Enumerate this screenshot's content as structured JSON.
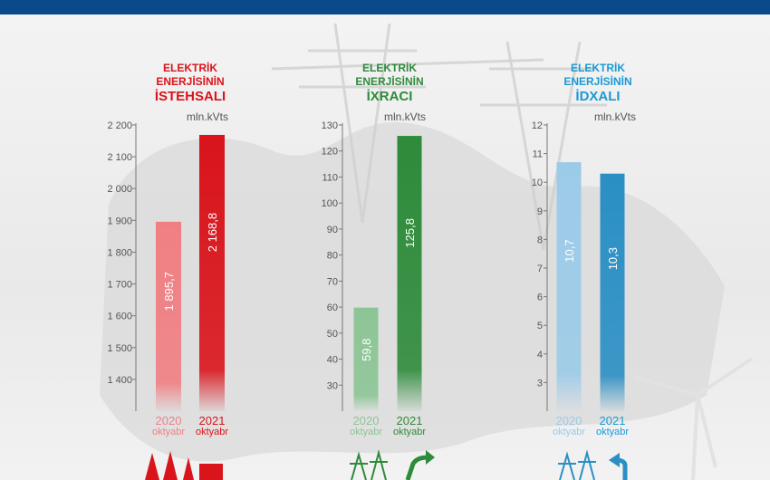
{
  "header": {
    "color": "#0a4a8a"
  },
  "panels": [
    {
      "title_line1": "ELEKTRİK",
      "title_line2": "ENERJİSİNİN",
      "title_line3": "İSTEHSALI",
      "unit": "mln.kVts",
      "accent": "#d9141b",
      "icon": "power-plant-icon",
      "bars": [
        {
          "year": "2020",
          "period": "oktyabr",
          "label": "1 895,7",
          "color": "#f07f83"
        },
        {
          "year": "2021",
          "period": "oktyabr",
          "label": "2 168,8",
          "color": "#d9141b"
        }
      ]
    },
    {
      "title_line1": "ELEKTRİK",
      "title_line2": "ENERJİSİNİN",
      "title_line3": "İXRACI",
      "unit": "mln.kVts",
      "accent": "#2e8b3a",
      "icon": "transmission-tower-export-icon",
      "bars": [
        {
          "year": "2020",
          "period": "oktyabr",
          "label": "59,8",
          "color": "#8cc595"
        },
        {
          "year": "2021",
          "period": "oktyabr",
          "label": "125,8",
          "color": "#2e8b3a"
        }
      ]
    },
    {
      "title_line1": "ELEKTRİK",
      "title_line2": "ENERJİSİNİN",
      "title_line3": "İDXALI",
      "unit": "mln.kVts",
      "accent": "#1a9ad6",
      "icon": "transmission-tower-import-icon",
      "bars": [
        {
          "year": "2020",
          "period": "oktyabr",
          "label": "10,7",
          "color": "#9ccbe8"
        },
        {
          "year": "2021",
          "period": "oktyabr",
          "label": "10,3",
          "color": "#2a8fc4"
        }
      ]
    }
  ],
  "chart_data": [
    {
      "type": "bar",
      "title": "ELEKTRİK ENERJİSİNİN İSTEHSALI",
      "ylabel": "mln.kVts",
      "categories": [
        "2020 oktyabr",
        "2021 oktyabr"
      ],
      "values": [
        1895.7,
        2168.8
      ],
      "ylim": [
        1300,
        2200
      ],
      "yticks": [
        1400,
        1500,
        1600,
        1700,
        1800,
        1900,
        2000,
        2100,
        2200
      ],
      "ytick_labels": [
        "1 400",
        "1 500",
        "1 600",
        "1 700",
        "1 800",
        "1 900",
        "2 000",
        "2 100",
        "2 200"
      ]
    },
    {
      "type": "bar",
      "title": "ELEKTRİK ENERJİSİNİN İXRACI",
      "ylabel": "mln.kVts",
      "categories": [
        "2020 oktyabr",
        "2021 oktyabr"
      ],
      "values": [
        59.8,
        125.8
      ],
      "ylim": [
        20,
        130
      ],
      "yticks": [
        30,
        40,
        50,
        60,
        70,
        80,
        90,
        100,
        110,
        120,
        130
      ],
      "ytick_labels": [
        "30",
        "40",
        "50",
        "60",
        "70",
        "80",
        "90",
        "100",
        "110",
        "120",
        "130"
      ]
    },
    {
      "type": "bar",
      "title": "ELEKTRİK ENERJİSİNİN İDXALI",
      "ylabel": "mln.kVts",
      "categories": [
        "2020 oktyabr",
        "2021 oktyabr"
      ],
      "values": [
        10.7,
        10.3
      ],
      "ylim": [
        2,
        12
      ],
      "yticks": [
        3,
        4,
        5,
        6,
        7,
        8,
        9,
        10,
        11,
        12
      ],
      "ytick_labels": [
        "3",
        "4",
        "5",
        "6",
        "7",
        "8",
        "9",
        "10",
        "11",
        "12"
      ]
    }
  ]
}
